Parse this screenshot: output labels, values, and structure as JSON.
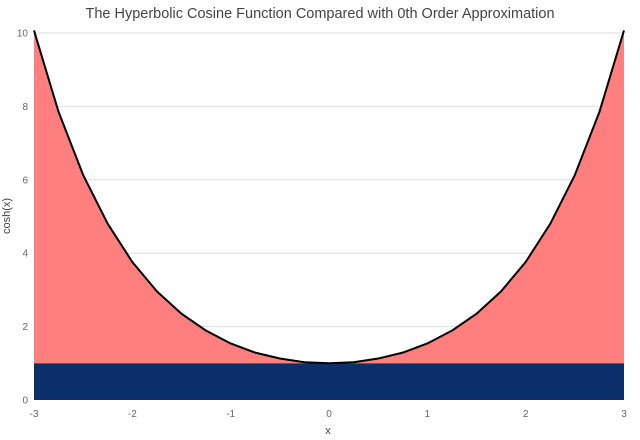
{
  "chart_data": {
    "type": "area",
    "title": "The Hyperbolic Cosine Function Compared with 0th Order Approximation",
    "xlabel": "x",
    "ylabel": "cosh(x)",
    "xlim": [
      -3,
      3
    ],
    "ylim": [
      0,
      10
    ],
    "x_ticks": [
      "-3",
      "-2",
      "-1",
      "0",
      "1",
      "2",
      "3"
    ],
    "y_ticks": [
      "0",
      "2",
      "4",
      "6",
      "8",
      "10"
    ],
    "grid": true,
    "legend": "none",
    "series": [
      {
        "role": "function",
        "color": "#ff7f7f",
        "line_color": "#000000",
        "x": [
          -3,
          -2.75,
          -2.5,
          -2.25,
          -2,
          -1.75,
          -1.5,
          -1.25,
          -1,
          -0.75,
          -0.5,
          -0.25,
          0,
          0.25,
          0.5,
          0.75,
          1,
          1.25,
          1.5,
          1.75,
          2,
          2.25,
          2.5,
          2.75,
          3
        ],
        "y": [
          10.07,
          7.85,
          6.13,
          4.8,
          3.76,
          2.96,
          2.35,
          1.89,
          1.54,
          1.29,
          1.13,
          1.03,
          1.0,
          1.03,
          1.13,
          1.29,
          1.54,
          1.89,
          2.35,
          2.96,
          3.76,
          4.8,
          6.13,
          7.85,
          10.07
        ]
      },
      {
        "role": "approximation",
        "color": "#0a2f6b",
        "x": [
          -3,
          3
        ],
        "y": [
          1,
          1
        ]
      }
    ]
  }
}
